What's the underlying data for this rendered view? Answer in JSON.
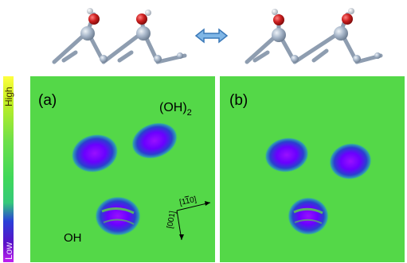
{
  "colorbar": {
    "high_label": "High",
    "low_label": "Low",
    "stops": [
      "#ffff40",
      "#c8f020",
      "#6ee04a",
      "#3fd85a",
      "#35c97a",
      "#2a40d8",
      "#5a10c8",
      "#c020f0"
    ]
  },
  "panels": [
    {
      "label": "(a)",
      "oh2_label": "(OH)",
      "oh2_subscript": "2",
      "oh_label": "OH",
      "axis_1": "[1",
      "axis_1_bar": "1",
      "axis_1_end": "0]",
      "axis_2": "[001]"
    },
    {
      "label": "(b)"
    }
  ],
  "exchange_arrow": "double-headed-arrow",
  "colors": {
    "map_background": "#5bd842",
    "spot_core": "#6a00ff",
    "spot_edge": "#2a3fd0",
    "atom_grey": "#a7b6c9",
    "atom_red": "#cc1f1f",
    "atom_white": "#f0f0f0"
  }
}
